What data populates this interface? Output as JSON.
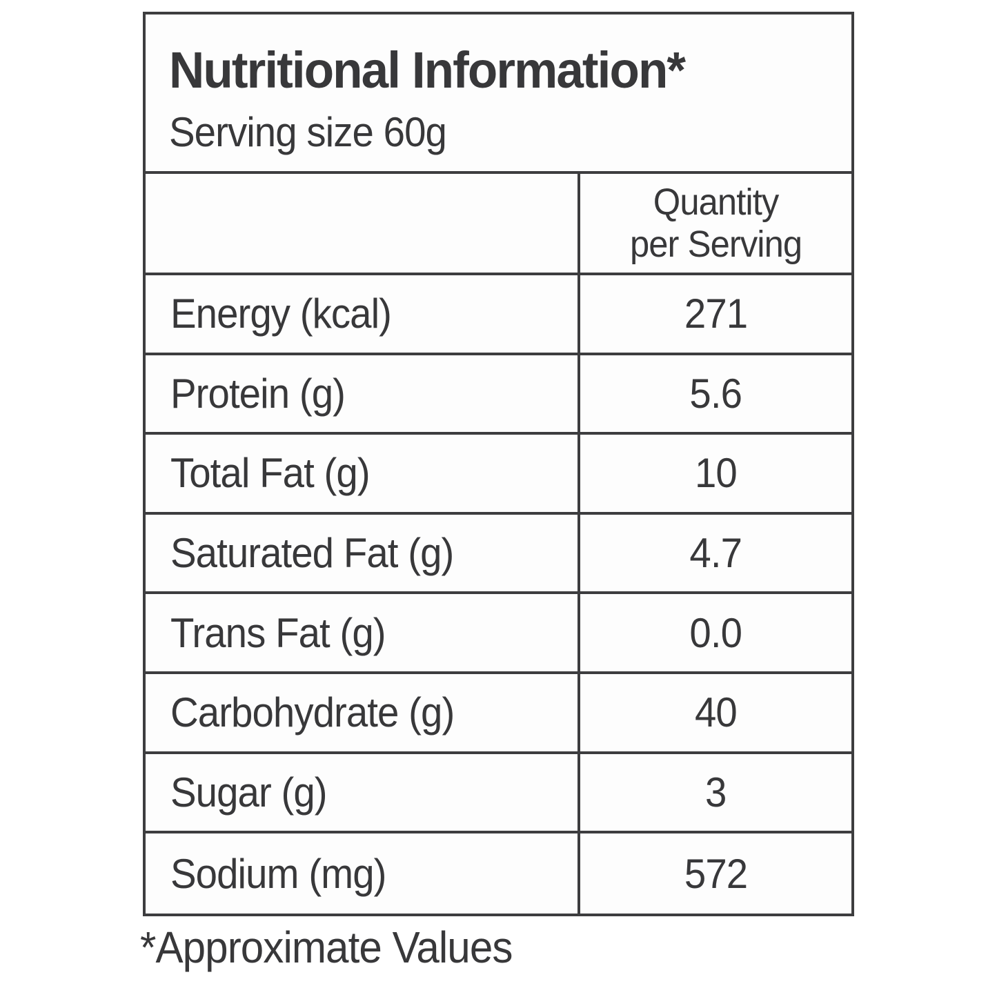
{
  "label": {
    "title": "Nutritional Information*",
    "serving_size": "Serving size 60g",
    "column_header": {
      "line1": "Quantity",
      "line2": "per Serving"
    },
    "rows": [
      {
        "label": "Energy (kcal)",
        "value": "271"
      },
      {
        "label": "Protein (g)",
        "value": "5.6"
      },
      {
        "label": "Total Fat (g)",
        "value": "10"
      },
      {
        "label": "Saturated Fat (g)",
        "value": "4.7"
      },
      {
        "label": "Trans Fat (g)",
        "value": "0.0"
      },
      {
        "label": "Carbohydrate (g)",
        "value": "40"
      },
      {
        "label": "Sugar (g)",
        "value": "3"
      },
      {
        "label": "Sodium (mg)",
        "value": "572"
      }
    ],
    "footnote": "*Approximate Values"
  },
  "colors": {
    "text": "#38383a",
    "border": "#3d3d3f",
    "background": "#ffffff"
  }
}
